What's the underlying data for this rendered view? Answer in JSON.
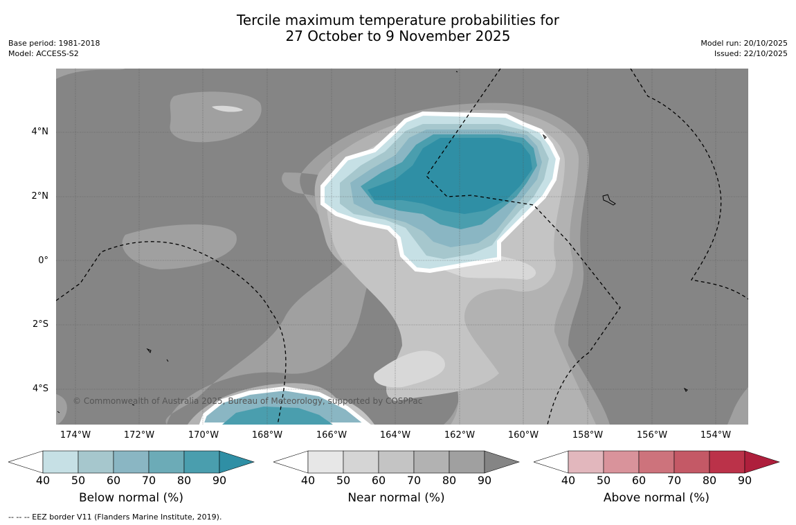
{
  "title": {
    "line1": "Tercile maximum temperature probabilities for",
    "line2": "27 October to 9 November 2025"
  },
  "meta_left": {
    "base_period": "Base period: 1981-2018",
    "model": "Model: ACCESS-S2"
  },
  "meta_right": {
    "model_run": "Model run: 20/10/2025",
    "issued": "Issued: 22/10/2025"
  },
  "map": {
    "copyright": "© Commonwealth of Australia 2025, Bureau of Meteorology, supported by COSPPac",
    "lat_labels": [
      "4°N",
      "2°N",
      "0°",
      "2°S",
      "4°S"
    ],
    "lon_labels": [
      "174°W",
      "172°W",
      "170°W",
      "168°W",
      "166°W",
      "164°W",
      "162°W",
      "160°W",
      "158°W",
      "156°W",
      "154°W"
    ],
    "colors": {
      "background_near": "#858585",
      "below_dominant": "#2f8fa5"
    }
  },
  "colorbars": [
    {
      "label": "Below normal (%)",
      "ticks": [
        "40",
        "50",
        "60",
        "70",
        "80",
        "90"
      ],
      "colors": [
        "#ffffff",
        "#c6e0e5",
        "#a6c7cd",
        "#8ab6c3",
        "#6cabb7",
        "#4a9eae",
        "#2f8fa5"
      ]
    },
    {
      "label": "Near normal (%)",
      "ticks": [
        "40",
        "50",
        "60",
        "70",
        "80",
        "90"
      ],
      "colors": [
        "#ffffff",
        "#e7e7e7",
        "#d5d5d5",
        "#c4c4c4",
        "#b2b2b2",
        "#a0a0a0",
        "#858585"
      ]
    },
    {
      "label": "Above normal (%)",
      "ticks": [
        "40",
        "50",
        "60",
        "70",
        "80",
        "90"
      ],
      "colors": [
        "#ffffff",
        "#e2b7bd",
        "#d9939b",
        "#cd737c",
        "#c45966",
        "#bb3249",
        "#ae1f3c"
      ]
    }
  ],
  "footer": "--  --  -- EEZ border V11 (Flanders Marine Institute, 2019)."
}
